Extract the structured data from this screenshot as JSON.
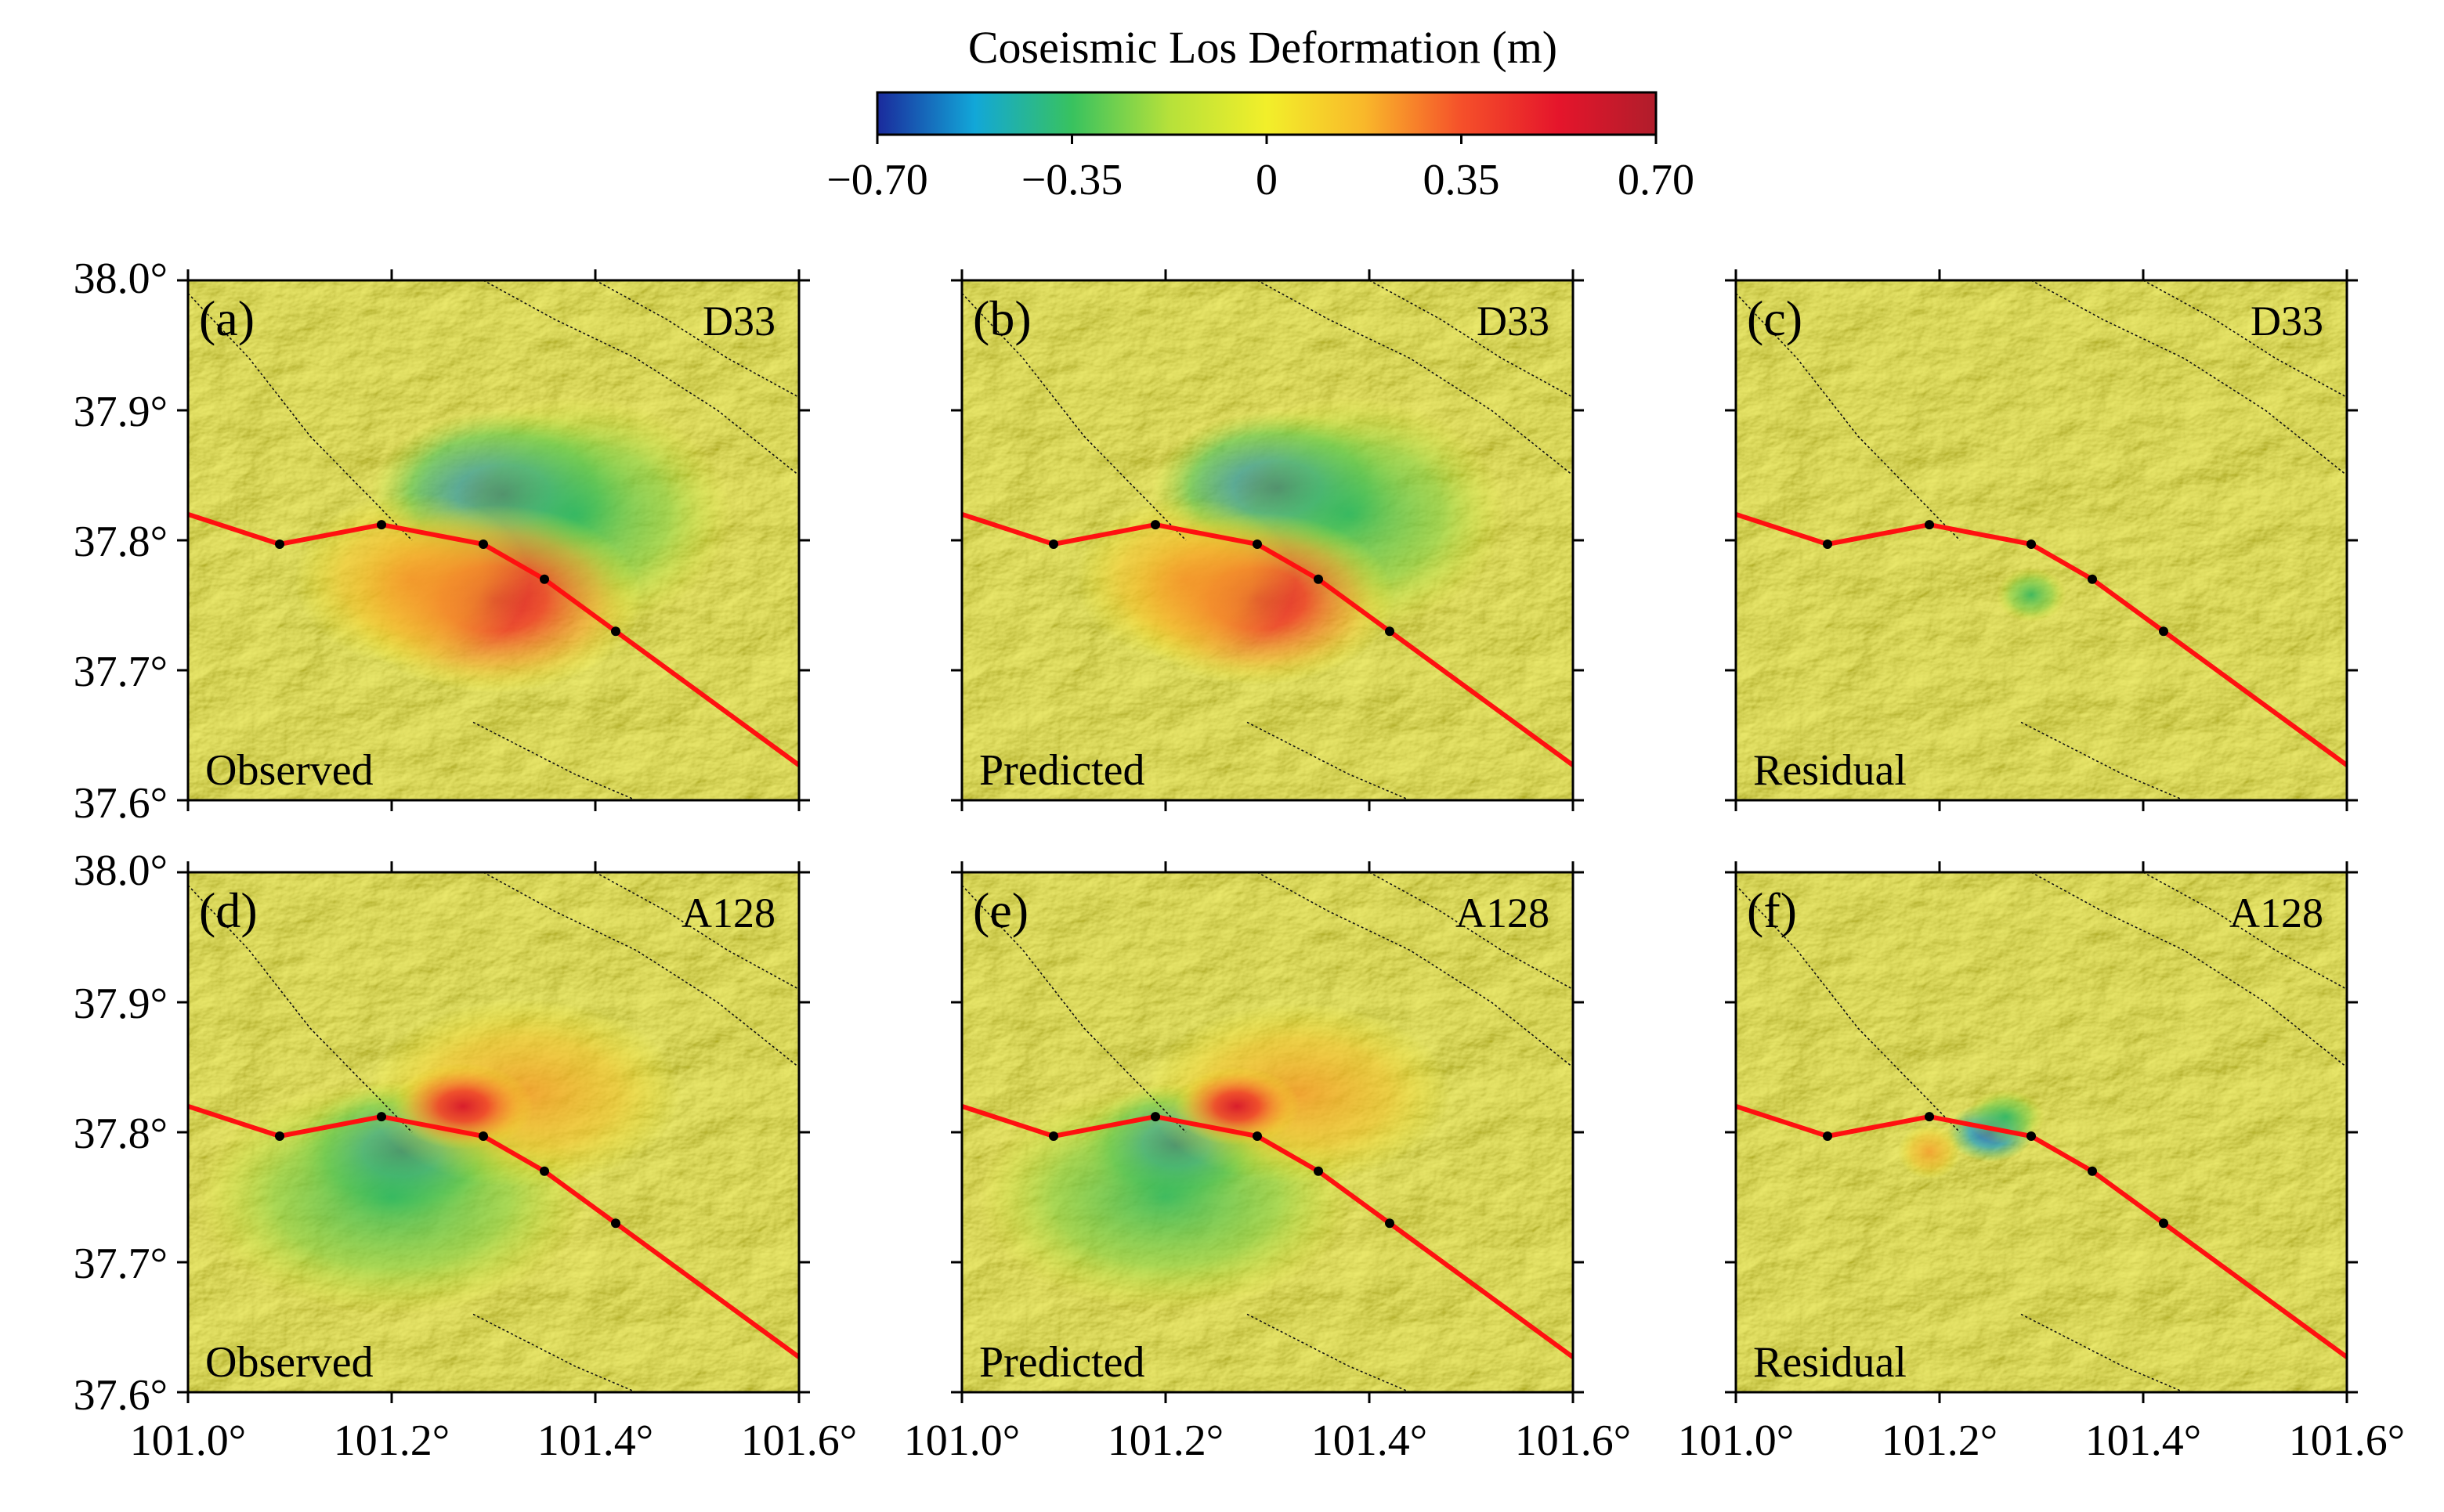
{
  "colorbar": {
    "title": "Coseismic Los Deformation (m)",
    "ticks": [
      {
        "label": "−0.70",
        "value": -0.7
      },
      {
        "label": "−0.35",
        "value": -0.35
      },
      {
        "label": "0",
        "value": 0
      },
      {
        "label": "0.35",
        "value": 0.35
      },
      {
        "label": "0.70",
        "value": 0.7
      }
    ],
    "stops": [
      "#1a2a9c",
      "#12a7d8",
      "#38c25f",
      "#b6e13a",
      "#f2ef2a",
      "#f9b82a",
      "#f5502a",
      "#e5152b",
      "#b01d2b"
    ]
  },
  "axes": {
    "lat_labels": [
      "38.0°",
      "37.9°",
      "37.8°",
      "37.7°",
      "37.6°"
    ],
    "lon_labels": [
      "101.0°",
      "101.2°",
      "101.4°",
      "101.6°"
    ],
    "lat_range": [
      37.6,
      38.0
    ],
    "lon_range": [
      101.0,
      101.6
    ]
  },
  "panels": [
    {
      "label": "(a)",
      "track": "D33",
      "kind": "Observed"
    },
    {
      "label": "(b)",
      "track": "D33",
      "kind": "Predicted"
    },
    {
      "label": "(c)",
      "track": "D33",
      "kind": "Residual"
    },
    {
      "label": "(d)",
      "track": "A128",
      "kind": "Observed"
    },
    {
      "label": "(e)",
      "track": "A128",
      "kind": "Predicted"
    },
    {
      "label": "(f)",
      "track": "A128",
      "kind": "Residual"
    }
  ],
  "fault_trace": {
    "lon": [
      101.0,
      101.09,
      101.19,
      101.29,
      101.35,
      101.42,
      101.6
    ],
    "lat": [
      37.82,
      37.797,
      37.812,
      37.797,
      37.77,
      37.73,
      37.627
    ]
  },
  "colors": {
    "base": "#e6e218",
    "shade": "#9c9a10",
    "fault": "#ff1010",
    "positive": "#e0152a",
    "negative": "#1a3db0",
    "green": "#3cbf5a"
  }
}
